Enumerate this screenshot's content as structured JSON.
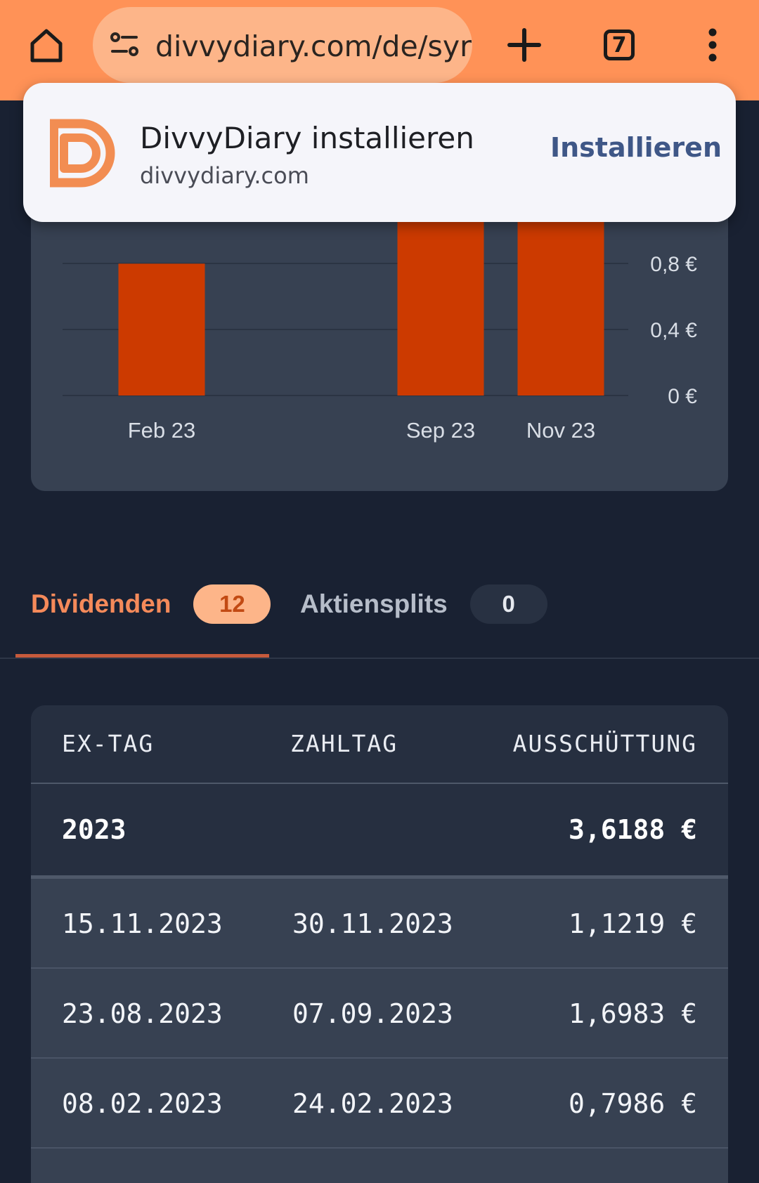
{
  "browser": {
    "url": "divvydiary.com/de/syr",
    "tab_count": "7"
  },
  "install_prompt": {
    "title": "DivvyDiary installieren",
    "domain": "divvydiary.com",
    "button": "Installieren"
  },
  "chart_data": {
    "type": "bar",
    "categories": [
      "Feb 23",
      "Sep 23",
      "Nov 23"
    ],
    "values": [
      0.7986,
      1.6983,
      1.1219
    ],
    "y_ticks": [
      0,
      0.4,
      0.8
    ],
    "y_tick_labels": [
      "0 €",
      "0,4 €",
      "0,8 €"
    ],
    "bar_color": "#CC3A00",
    "grid": true
  },
  "tabs": [
    {
      "label": "Dividenden",
      "count": "12"
    },
    {
      "label": "Aktiensplits",
      "count": "0"
    }
  ],
  "table": {
    "headers": [
      "EX-TAG",
      "ZAHLTAG",
      "AUSSCHÜTTUNG"
    ],
    "year_group": {
      "year": "2023",
      "total": "3,6188 €"
    },
    "rows": [
      {
        "ex": "15.11.2023",
        "pay": "30.11.2023",
        "amount": "1,1219 €"
      },
      {
        "ex": "23.08.2023",
        "pay": "07.09.2023",
        "amount": "1,6983 €"
      },
      {
        "ex": "08.02.2023",
        "pay": "24.02.2023",
        "amount": "0,7986 €"
      }
    ]
  },
  "colors": {
    "toolbar": "#FF9257",
    "accent": "#F58A5A",
    "background": "#192132"
  }
}
